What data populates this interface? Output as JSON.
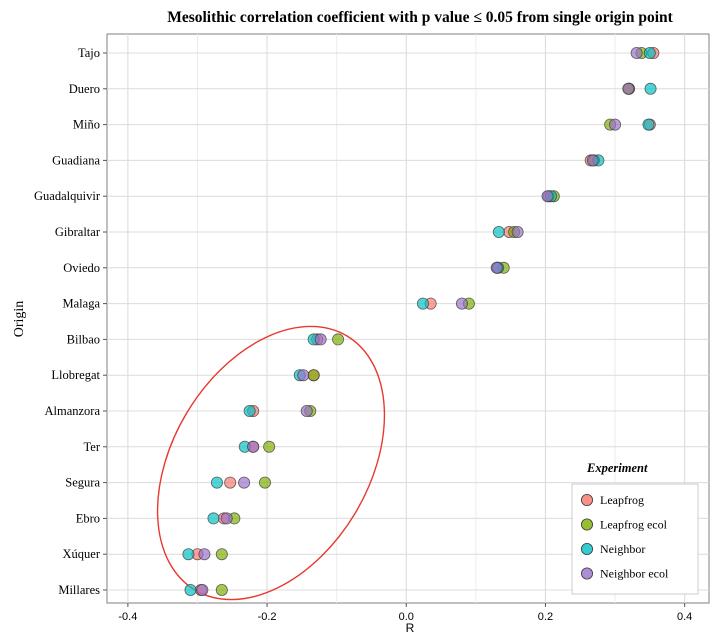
{
  "chart_data": {
    "type": "scatter",
    "title": "Mesolithic correlation coefficient with p value ≤ 0.05 from single origin point",
    "xlabel": "R",
    "ylabel": "Origin",
    "xlim": [
      -0.4,
      0.4
    ],
    "xticks": [
      -0.4,
      -0.2,
      0.0,
      0.2,
      0.4
    ],
    "xtick_labels": [
      "-0.4",
      "-0.2",
      "0.0",
      "0.2",
      "0.4"
    ],
    "grid": true,
    "legend_title": "Experiment",
    "legend_position": "bottom-right",
    "categories": [
      "Tajo",
      "Duero",
      "Miño",
      "Guadiana",
      "Guadalquivir",
      "Gibraltar",
      "Oviedo",
      "Malaga",
      "Bilbao",
      "Llobregat",
      "Almanzora",
      "Ter",
      "Segura",
      "Ebro",
      "Xúquer",
      "Millares"
    ],
    "series": [
      {
        "name": "Leapfrog",
        "color": "#F8766D",
        "values": [
          0.355,
          0.32,
          0.35,
          0.265,
          0.205,
          0.148,
          0.131,
          0.035,
          -0.128,
          -0.133,
          -0.22,
          -0.22,
          -0.253,
          -0.262,
          -0.3,
          -0.295
        ]
      },
      {
        "name": "Leapfrog ecol",
        "color": "#7CAE00",
        "values": [
          0.338,
          0.32,
          0.293,
          0.27,
          0.212,
          0.155,
          0.14,
          0.09,
          -0.098,
          -0.133,
          -0.138,
          -0.197,
          -0.203,
          -0.247,
          -0.265,
          -0.265
        ]
      },
      {
        "name": "Neighbor",
        "color": "#00BFC4",
        "values": [
          0.35,
          0.351,
          0.348,
          0.276,
          0.208,
          0.133,
          0.132,
          0.024,
          -0.133,
          -0.153,
          -0.225,
          -0.232,
          -0.272,
          -0.277,
          -0.313,
          -0.31
        ]
      },
      {
        "name": "Neighbor ecol",
        "color": "#9970C8",
        "values": [
          0.331,
          0.319,
          0.3,
          0.268,
          0.203,
          0.16,
          0.13,
          0.08,
          -0.123,
          -0.148,
          -0.143,
          -0.22,
          -0.233,
          -0.258,
          -0.29,
          -0.293
        ]
      }
    ],
    "annotation": "red ellipse highlighting Bilbao through Millares"
  }
}
